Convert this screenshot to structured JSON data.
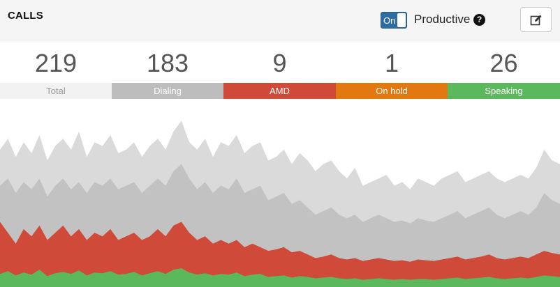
{
  "header": {
    "title": "CALLS",
    "toggle_label": "On",
    "productive_label": "Productive",
    "help_icon": "question-circle-icon",
    "edit_icon": "edit-icon"
  },
  "stats": [
    {
      "key": "total",
      "value": "219",
      "label": "Total",
      "bg": "#f2f2f2",
      "fg": "#9a9a9a"
    },
    {
      "key": "dialing",
      "value": "183",
      "label": "Dialing",
      "bg": "#bdbdbd",
      "fg": "#ffffff"
    },
    {
      "key": "amd",
      "value": "9",
      "label": "AMD",
      "bg": "#cf4a38",
      "fg": "#ffffff"
    },
    {
      "key": "on-hold",
      "value": "1",
      "label": "On hold",
      "bg": "#e2780f",
      "fg": "#ffffff"
    },
    {
      "key": "speaking",
      "value": "26",
      "label": "Speaking",
      "bg": "#5cb85c",
      "fg": "#ffffff"
    }
  ],
  "chart_data": {
    "type": "area",
    "stacked": false,
    "series": [
      {
        "name": "Total",
        "color": "#dadada",
        "values": [
          190,
          205,
          180,
          200,
          185,
          210,
          175,
          195,
          205,
          190,
          215,
          180,
          200,
          195,
          210,
          185,
          190,
          200,
          180,
          195,
          205,
          190,
          215,
          230,
          200,
          190,
          205,
          180,
          200,
          195,
          210,
          185,
          195,
          200,
          175,
          180,
          190,
          170,
          185,
          175,
          160,
          170,
          175,
          160,
          150,
          165,
          140,
          145,
          150,
          155,
          140,
          145,
          135,
          150,
          145,
          140,
          150,
          155,
          160,
          145,
          150,
          155,
          160,
          150,
          145,
          150,
          155,
          150,
          165,
          190,
          175,
          170
        ]
      },
      {
        "name": "Dialing",
        "color": "#c2c2c2",
        "values": [
          140,
          150,
          130,
          145,
          135,
          150,
          125,
          140,
          150,
          135,
          145,
          130,
          145,
          140,
          150,
          135,
          140,
          145,
          130,
          140,
          150,
          140,
          160,
          170,
          150,
          135,
          145,
          130,
          140,
          135,
          150,
          130,
          135,
          140,
          120,
          125,
          130,
          115,
          120,
          110,
          100,
          105,
          110,
          100,
          95,
          100,
          90,
          95,
          100,
          95,
          90,
          92,
          88,
          95,
          92,
          90,
          95,
          100,
          105,
          95,
          100,
          105,
          110,
          100,
          95,
          100,
          105,
          100,
          110,
          130,
          120,
          115
        ]
      },
      {
        "name": "AMD",
        "color": "#cf4a38",
        "values": [
          90,
          75,
          60,
          80,
          70,
          85,
          65,
          75,
          85,
          70,
          80,
          65,
          75,
          70,
          80,
          65,
          70,
          75,
          65,
          70,
          80,
          70,
          85,
          90,
          75,
          65,
          70,
          60,
          65,
          60,
          65,
          55,
          60,
          55,
          50,
          52,
          55,
          48,
          50,
          45,
          40,
          42,
          45,
          40,
          38,
          40,
          36,
          38,
          40,
          38,
          36,
          37,
          35,
          38,
          37,
          36,
          38,
          40,
          42,
          38,
          40,
          42,
          45,
          40,
          38,
          40,
          42,
          40,
          45,
          50,
          47,
          45
        ]
      },
      {
        "name": "Speaking",
        "color": "#5cb85c",
        "values": [
          18,
          22,
          16,
          20,
          17,
          24,
          15,
          19,
          21,
          18,
          23,
          16,
          20,
          19,
          22,
          17,
          18,
          21,
          16,
          19,
          22,
          18,
          24,
          26,
          20,
          17,
          19,
          16,
          18,
          17,
          20,
          15,
          17,
          18,
          14,
          15,
          16,
          13,
          15,
          14,
          12,
          13,
          14,
          12,
          11,
          12,
          10,
          11,
          12,
          11,
          10,
          11,
          10,
          11,
          11,
          10,
          11,
          12,
          13,
          11,
          12,
          13,
          14,
          12,
          11,
          12,
          13,
          12,
          14,
          16,
          15,
          14
        ]
      }
    ],
    "ylim": [
      0,
      260
    ]
  }
}
